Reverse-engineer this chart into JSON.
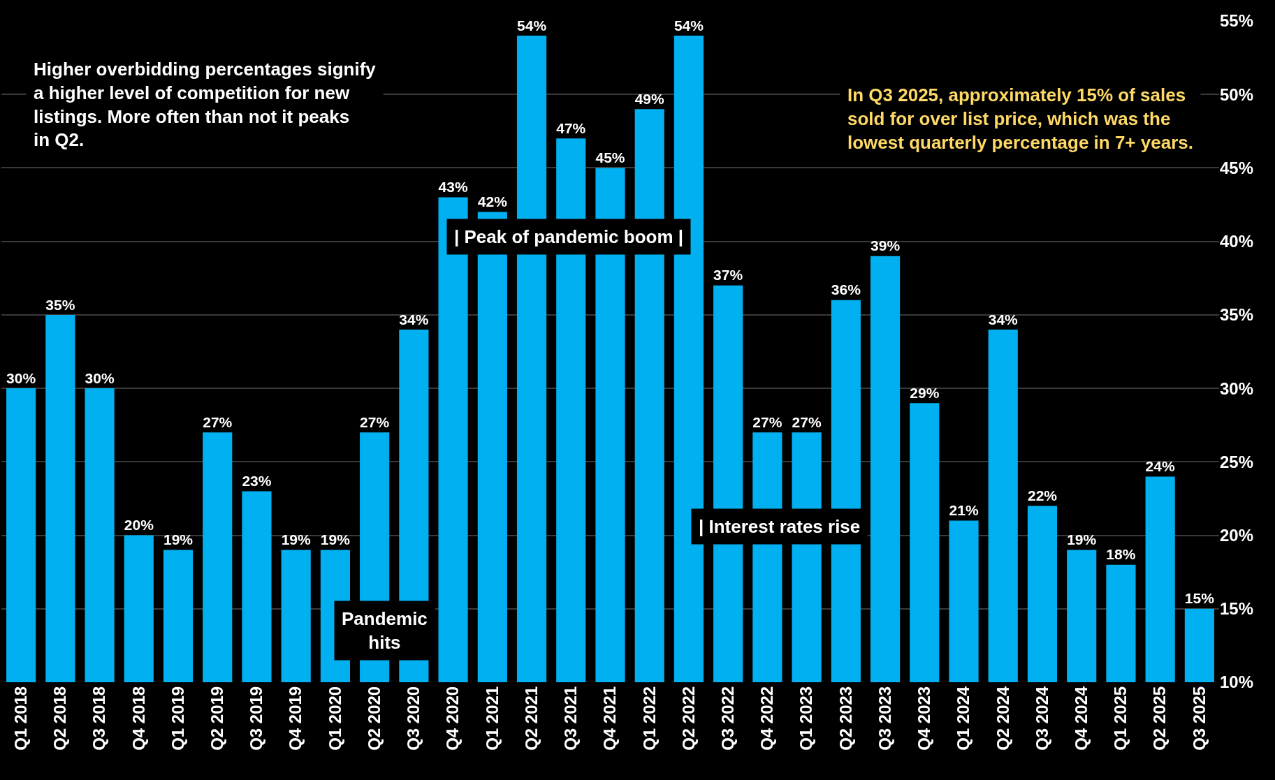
{
  "chart_data": {
    "type": "bar",
    "categories": [
      "Q1 2018",
      "Q2 2018",
      "Q3 2018",
      "Q4 2018",
      "Q1 2019",
      "Q2 2019",
      "Q3 2019",
      "Q4 2019",
      "Q1 2020",
      "Q2 2020",
      "Q3 2020",
      "Q4 2020",
      "Q1 2021",
      "Q2 2021",
      "Q3 2021",
      "Q4 2021",
      "Q1 2022",
      "Q2 2022",
      "Q3 2022",
      "Q4 2022",
      "Q1 2023",
      "Q2 2023",
      "Q3 2023",
      "Q4 2023",
      "Q1 2024",
      "Q2 2024",
      "Q3 2024",
      "Q4 2024",
      "Q1 2025",
      "Q2 2025",
      "Q3 2025"
    ],
    "values": [
      30,
      35,
      30,
      20,
      19,
      27,
      23,
      19,
      19,
      27,
      34,
      43,
      42,
      54,
      47,
      45,
      49,
      54,
      37,
      27,
      27,
      36,
      39,
      29,
      21,
      34,
      22,
      19,
      18,
      24,
      15
    ],
    "value_labels": [
      "30%",
      "35%",
      "30%",
      "20%",
      "19%",
      "27%",
      "23%",
      "19%",
      "19%",
      "27%",
      "34%",
      "43%",
      "42%",
      "54%",
      "47%",
      "45%",
      "49%",
      "54%",
      "37%",
      "27%",
      "27%",
      "36%",
      "39%",
      "29%",
      "21%",
      "34%",
      "22%",
      "19%",
      "18%",
      "24%",
      "15%"
    ],
    "color": "#00b0f0",
    "ylim": [
      10,
      55
    ],
    "yticks": [
      {
        "value": 10,
        "label": "10%"
      },
      {
        "value": 15,
        "label": "15%"
      },
      {
        "value": 20,
        "label": "20%"
      },
      {
        "value": 25,
        "label": "25%"
      },
      {
        "value": 30,
        "label": "30%"
      },
      {
        "value": 35,
        "label": "35%"
      },
      {
        "value": 40,
        "label": "40%"
      },
      {
        "value": 45,
        "label": "45%"
      },
      {
        "value": 50,
        "label": "50%"
      },
      {
        "value": 55,
        "label": "55%"
      }
    ],
    "grid": "y",
    "annotations": [
      "Higher overbidding percentages signify a higher level of competition for new listings. More often than not it peaks in Q2.",
      "In Q3 2025, approximately 15% of sales sold for over list price, which was the lowest quarterly percentage in 7+ years.",
      "Pandemic hits",
      "| Peak of pandemic boom |",
      "| Interest rates rise"
    ]
  }
}
